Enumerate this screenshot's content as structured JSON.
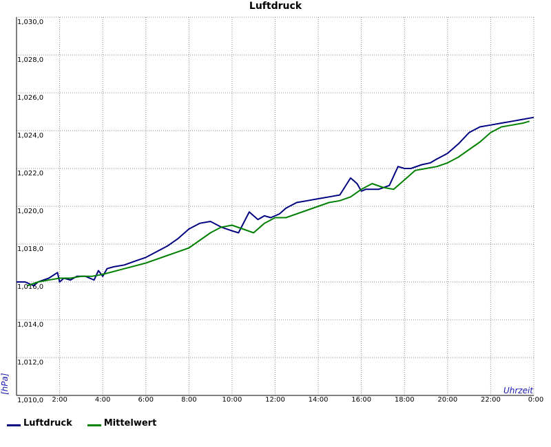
{
  "chart_data": {
    "type": "line",
    "title": "Luftdruck",
    "ylabel": "[hPa]",
    "xlabel": "Uhrzeit",
    "ylim": [
      1010,
      1030
    ],
    "xlim": [
      0,
      24
    ],
    "grid": true,
    "legend_position": "bottom-left",
    "y_ticks": [
      "1,010,0",
      "1,012,0",
      "1,014,0",
      "1,016,0",
      "1,018,0",
      "1,020,0",
      "1,022,0",
      "1,024,0",
      "1,026,0",
      "1,028,0",
      "1,030,0"
    ],
    "x_ticks": [
      "2:00",
      "4:00",
      "6:00",
      "8:00",
      "10:00",
      "12:00",
      "14:00",
      "16:00",
      "18:00",
      "20:00",
      "22:00",
      "0:00"
    ],
    "series": [
      {
        "name": "Luftdruck",
        "color": "#000080",
        "x": [
          0,
          0.4,
          0.8,
          1.0,
          1.5,
          1.9,
          2.0,
          2.2,
          2.5,
          2.8,
          3.2,
          3.6,
          3.8,
          4.0,
          4.2,
          4.5,
          5.0,
          5.5,
          6.0,
          6.5,
          7.0,
          7.5,
          8.0,
          8.5,
          9.0,
          9.5,
          10.0,
          10.3,
          10.8,
          11.2,
          11.5,
          11.8,
          12.2,
          12.5,
          13.0,
          13.5,
          14.0,
          14.5,
          15.0,
          15.5,
          15.8,
          16.0,
          16.2,
          16.5,
          16.8,
          17.3,
          17.7,
          18.0,
          18.3,
          18.8,
          19.2,
          19.5,
          20.0,
          20.5,
          21.0,
          21.5,
          22.0,
          22.5,
          23.0,
          23.5,
          24.0
        ],
        "y": [
          1016.0,
          1016.0,
          1015.8,
          1016.0,
          1016.2,
          1016.5,
          1016.0,
          1016.2,
          1016.1,
          1016.3,
          1016.3,
          1016.1,
          1016.6,
          1016.3,
          1016.7,
          1016.8,
          1016.9,
          1017.1,
          1017.3,
          1017.6,
          1017.9,
          1018.3,
          1018.8,
          1019.1,
          1019.2,
          1018.9,
          1018.7,
          1018.6,
          1019.7,
          1019.3,
          1019.5,
          1019.4,
          1019.6,
          1019.9,
          1020.2,
          1020.3,
          1020.4,
          1020.5,
          1020.6,
          1021.5,
          1021.2,
          1020.8,
          1020.9,
          1020.9,
          1020.9,
          1021.1,
          1022.1,
          1022.0,
          1022.0,
          1022.2,
          1022.3,
          1022.5,
          1022.8,
          1023.3,
          1023.9,
          1024.2,
          1024.3,
          1024.4,
          1024.5,
          1024.6,
          1024.7
        ]
      },
      {
        "name": "Mittelwert",
        "color": "#008000",
        "x": [
          0.5,
          1.0,
          1.5,
          2.0,
          2.5,
          3.0,
          3.5,
          4.0,
          5.0,
          6.0,
          7.0,
          8.0,
          8.5,
          9.0,
          9.5,
          10.0,
          10.5,
          11.0,
          11.5,
          12.0,
          12.5,
          13.0,
          13.5,
          14.0,
          14.5,
          15.0,
          15.5,
          16.0,
          16.5,
          17.0,
          17.5,
          18.0,
          18.5,
          19.0,
          19.5,
          20.0,
          20.5,
          21.0,
          21.5,
          22.0,
          22.5,
          23.0,
          23.5,
          23.8
        ],
        "y": [
          1015.8,
          1016.0,
          1016.1,
          1016.2,
          1016.2,
          1016.3,
          1016.3,
          1016.4,
          1016.7,
          1017.0,
          1017.4,
          1017.8,
          1018.2,
          1018.6,
          1018.9,
          1019.0,
          1018.8,
          1018.6,
          1019.1,
          1019.4,
          1019.4,
          1019.6,
          1019.8,
          1020.0,
          1020.2,
          1020.3,
          1020.5,
          1020.9,
          1021.2,
          1021.0,
          1020.9,
          1021.4,
          1021.9,
          1022.0,
          1022.1,
          1022.3,
          1022.6,
          1023.0,
          1023.4,
          1023.9,
          1024.2,
          1024.3,
          1024.4,
          1024.5
        ]
      }
    ]
  }
}
